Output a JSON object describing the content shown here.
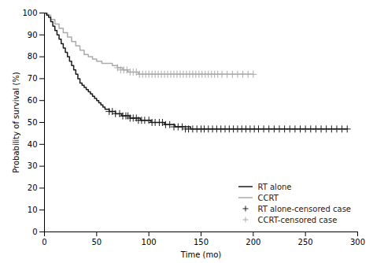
{
  "chart_data": {
    "type": "step",
    "xlabel": "Time (mo)",
    "ylabel": "Probability of survival (%)",
    "xlim": [
      0,
      300
    ],
    "ylim": [
      0,
      100
    ],
    "xticks": [
      0,
      50,
      100,
      150,
      200,
      250,
      300
    ],
    "yticks": [
      0,
      10,
      20,
      30,
      40,
      50,
      60,
      70,
      80,
      90,
      100
    ],
    "grid": false,
    "legend": "lower right",
    "series": [
      {
        "name": "RT alone",
        "type": "step",
        "color": "#1a1a1a",
        "line_style": "solid",
        "x": [
          0,
          2,
          4,
          6,
          8,
          10,
          12,
          14,
          16,
          18,
          20,
          22,
          24,
          26,
          28,
          30,
          32,
          34,
          36,
          38,
          40,
          42,
          44,
          46,
          48,
          50,
          52,
          54,
          56,
          58,
          60,
          62,
          64,
          66,
          68,
          70,
          72,
          74,
          76,
          78,
          80,
          82,
          84,
          86,
          88,
          90,
          92,
          94,
          96,
          98,
          100,
          102,
          104,
          106,
          108,
          110,
          112,
          115,
          118,
          120,
          125,
          130,
          140,
          150,
          160,
          170,
          180,
          190,
          200,
          210,
          220,
          230,
          240,
          250,
          260,
          270,
          280,
          290
        ],
        "values": [
          100,
          99,
          98,
          96,
          94,
          92,
          90,
          88,
          86,
          84,
          82,
          80,
          78,
          76,
          74,
          72,
          70,
          68,
          67,
          66,
          65,
          64,
          63,
          62,
          61,
          60,
          59,
          58,
          57,
          56,
          56,
          55,
          55,
          55,
          54,
          54,
          54,
          53,
          53,
          53,
          53,
          52,
          52,
          52,
          52,
          52,
          51,
          51,
          51,
          51,
          51,
          50,
          50,
          50,
          50,
          50,
          50,
          49,
          49,
          49,
          48,
          48,
          47,
          47,
          47,
          47,
          47,
          47,
          47,
          47,
          47,
          47,
          47,
          47,
          47,
          47,
          47,
          47
        ]
      },
      {
        "name": "CCRT",
        "type": "step",
        "color": "#aaaaaa",
        "line_style": "solid",
        "x": [
          0,
          3,
          6,
          10,
          14,
          18,
          22,
          26,
          30,
          34,
          38,
          42,
          46,
          50,
          55,
          60,
          65,
          70,
          75,
          80,
          90,
          100,
          110,
          120,
          130,
          140,
          150,
          160,
          170,
          180,
          200
        ],
        "values": [
          100,
          99,
          97,
          95,
          93,
          91,
          89,
          87,
          85,
          83,
          81,
          80,
          79,
          78,
          77,
          77,
          76,
          75,
          74,
          73,
          72,
          72,
          72,
          72,
          72,
          72,
          72,
          72,
          72,
          72,
          72
        ]
      },
      {
        "name": "RT alone-censored case",
        "type": "scatter",
        "color": "#1a1a1a",
        "marker": "+",
        "x": [
          62,
          65,
          68,
          72,
          75,
          78,
          80,
          82,
          85,
          88,
          90,
          93,
          96,
          100,
          103,
          106,
          110,
          113,
          116,
          120,
          124,
          128,
          132,
          135,
          138,
          142,
          146,
          150,
          153,
          157,
          161,
          165,
          169,
          173,
          177,
          181,
          185,
          189,
          193,
          197,
          201,
          205,
          210,
          215,
          220,
          225,
          230,
          235,
          240,
          245,
          250,
          255,
          260,
          265,
          270,
          275,
          280,
          285,
          290
        ],
        "values": [
          55,
          55,
          54,
          54,
          53,
          53,
          53,
          52,
          52,
          52,
          51,
          51,
          51,
          51,
          50,
          50,
          50,
          50,
          49,
          49,
          48,
          48,
          48,
          47,
          47,
          47,
          47,
          47,
          47,
          47,
          47,
          47,
          47,
          47,
          47,
          47,
          47,
          47,
          47,
          47,
          47,
          47,
          47,
          47,
          47,
          47,
          47,
          47,
          47,
          47,
          47,
          47,
          47,
          47,
          47,
          47,
          47,
          47,
          47
        ]
      },
      {
        "name": "CCRT-censored case",
        "type": "scatter",
        "color": "#aaaaaa",
        "marker": "+",
        "x": [
          70,
          73,
          76,
          79,
          82,
          85,
          88,
          91,
          94,
          97,
          100,
          103,
          106,
          109,
          112,
          115,
          118,
          121,
          124,
          127,
          130,
          133,
          136,
          139,
          142,
          145,
          148,
          151,
          154,
          157,
          160,
          163,
          166,
          170,
          175,
          180,
          185,
          190,
          195,
          200
        ],
        "values": [
          75,
          74,
          74,
          74,
          73,
          73,
          73,
          72,
          72,
          72,
          72,
          72,
          72,
          72,
          72,
          72,
          72,
          72,
          72,
          72,
          72,
          72,
          72,
          72,
          72,
          72,
          72,
          72,
          72,
          72,
          72,
          72,
          72,
          72,
          72,
          72,
          72,
          72,
          72,
          72
        ]
      }
    ]
  }
}
